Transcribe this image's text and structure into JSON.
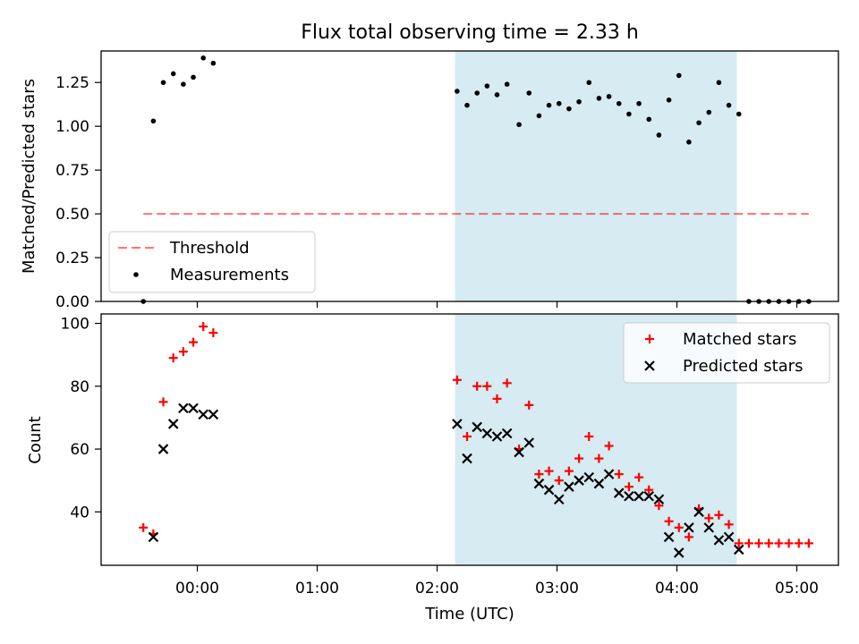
{
  "title": "Flux total observing time = 2.33 h",
  "colors": {
    "shade": "#add8e6",
    "threshold": "#ff0000",
    "measurements": "#000000",
    "matched": "#ff0000",
    "predicted": "#000000"
  },
  "chart_data": [
    {
      "type": "scatter",
      "ylabel": "Matched/Predicted stars",
      "ylim": [
        0,
        1.43
      ],
      "yticks": [
        "0.00",
        "0.25",
        "0.50",
        "0.75",
        "1.00",
        "1.25"
      ],
      "legend": {
        "placement": "lower-left",
        "entries": [
          "Threshold",
          "Measurements"
        ]
      },
      "threshold": {
        "name": "Threshold",
        "value": 0.5,
        "x_start": "23:33",
        "x_end": "05:06"
      },
      "shaded_span": {
        "start": "02:09",
        "end": "04:30"
      },
      "series": [
        {
          "name": "Measurements",
          "x": [
            "23:33",
            "23:38",
            "23:43",
            "23:48",
            "23:53",
            "23:58",
            "00:03",
            "00:08",
            "02:10",
            "02:15",
            "02:20",
            "02:25",
            "02:30",
            "02:35",
            "02:41",
            "02:46",
            "02:51",
            "02:56",
            "03:01",
            "03:06",
            "03:11",
            "03:16",
            "03:21",
            "03:26",
            "03:31",
            "03:36",
            "03:41",
            "03:46",
            "03:51",
            "03:56",
            "04:01",
            "04:06",
            "04:11",
            "04:16",
            "04:21",
            "04:26",
            "04:31",
            "04:36",
            "04:41",
            "04:46",
            "04:51",
            "04:56",
            "05:01",
            "05:06"
          ],
          "values": [
            0,
            1.03,
            1.25,
            1.3,
            1.24,
            1.28,
            1.39,
            1.36,
            1.2,
            1.12,
            1.19,
            1.23,
            1.18,
            1.24,
            1.01,
            1.19,
            1.06,
            1.12,
            1.13,
            1.1,
            1.14,
            1.25,
            1.16,
            1.17,
            1.13,
            1.07,
            1.13,
            1.04,
            0.95,
            1.15,
            1.29,
            0.91,
            1.02,
            1.08,
            1.25,
            1.12,
            1.07,
            0,
            0,
            0,
            0,
            0,
            0,
            0
          ]
        }
      ]
    },
    {
      "type": "scatter",
      "xlabel": "Time (UTC)",
      "ylabel": "Count",
      "ylim": [
        23,
        103
      ],
      "yticks": [
        "40",
        "60",
        "80",
        "100"
      ],
      "xticks": [
        "00:00",
        "01:00",
        "02:00",
        "03:00",
        "04:00",
        "05:00"
      ],
      "legend": {
        "placement": "top-right",
        "entries": [
          "Matched stars",
          "Predicted stars"
        ]
      },
      "shaded_span": {
        "start": "02:09",
        "end": "04:30"
      },
      "series": [
        {
          "name": "Matched stars",
          "x": [
            "23:33",
            "23:38",
            "23:43",
            "23:48",
            "23:53",
            "23:58",
            "00:03",
            "00:08",
            "02:10",
            "02:15",
            "02:20",
            "02:25",
            "02:30",
            "02:35",
            "02:41",
            "02:46",
            "02:51",
            "02:56",
            "03:01",
            "03:06",
            "03:11",
            "03:16",
            "03:21",
            "03:26",
            "03:31",
            "03:36",
            "03:41",
            "03:46",
            "03:51",
            "03:56",
            "04:01",
            "04:06",
            "04:11",
            "04:16",
            "04:21",
            "04:26",
            "04:31",
            "04:36",
            "04:41",
            "04:46",
            "04:51",
            "04:56",
            "05:01",
            "05:06"
          ],
          "values": [
            35,
            33,
            75,
            89,
            91,
            94,
            99,
            97,
            82,
            64,
            80,
            80,
            76,
            81,
            60,
            74,
            52,
            53,
            50,
            53,
            57,
            64,
            57,
            61,
            52,
            48,
            51,
            47,
            42,
            37,
            35,
            32,
            41,
            38,
            39,
            36,
            30,
            30,
            30,
            30,
            30,
            30,
            30,
            30
          ]
        },
        {
          "name": "Predicted stars",
          "x": [
            "23:38",
            "23:43",
            "23:48",
            "23:53",
            "23:58",
            "00:03",
            "00:08",
            "02:10",
            "02:15",
            "02:20",
            "02:25",
            "02:30",
            "02:35",
            "02:41",
            "02:46",
            "02:51",
            "02:56",
            "03:01",
            "03:06",
            "03:11",
            "03:16",
            "03:21",
            "03:26",
            "03:31",
            "03:36",
            "03:41",
            "03:46",
            "03:51",
            "03:56",
            "04:01",
            "04:06",
            "04:11",
            "04:16",
            "04:21",
            "04:26",
            "04:31"
          ],
          "values": [
            32,
            60,
            68,
            73,
            73,
            71,
            71,
            68,
            57,
            67,
            65,
            64,
            65,
            59,
            62,
            49,
            47,
            44,
            48,
            50,
            51,
            49,
            52,
            46,
            45,
            45,
            45,
            44,
            32,
            27,
            35,
            40,
            35,
            31,
            32,
            28
          ]
        }
      ]
    }
  ]
}
